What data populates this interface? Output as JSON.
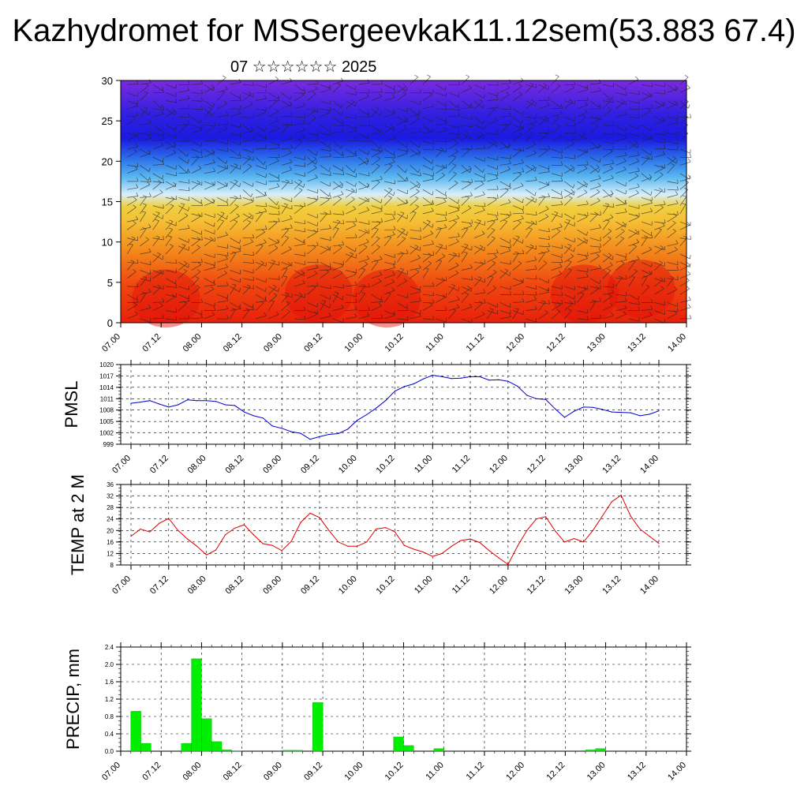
{
  "header": {
    "title": "Kazhydromet for MSSergeevkaK11.12sem(53.883 67.4)",
    "subtitle": "07 ☆☆☆☆☆☆ 2025"
  },
  "chart_data": [
    {
      "type": "heatmap",
      "ylabel": "",
      "ylim": [
        0,
        30
      ],
      "yticks": [
        "0",
        "5",
        "10",
        "15",
        "20",
        "25",
        "30"
      ],
      "xticks": [
        "07.00",
        "07.12",
        "08.00",
        "08.12",
        "09.00",
        "09.12",
        "10.00",
        "10.12",
        "11.00",
        "11.12",
        "12.00",
        "12.12",
        "13.00",
        "13.12",
        "14.00"
      ],
      "colors": {
        "low_levels": "#e8200a",
        "mid_levels": "#f0d040",
        "upper_levels": "#1a1ae0",
        "top": "#7a2ae0"
      },
      "overlay": "wind barbs"
    },
    {
      "type": "line",
      "ylabel": "PMSL",
      "ylim": [
        999,
        1020
      ],
      "yticks": [
        "999",
        "1002",
        "1005",
        "1008",
        "1011",
        "1014",
        "1017",
        "1020"
      ],
      "xticks": [
        "07.00",
        "07.12",
        "08.00",
        "08.12",
        "09.00",
        "09.12",
        "10.00",
        "10.12",
        "11.00",
        "11.12",
        "12.00",
        "12.12",
        "13.00",
        "13.12",
        "14.00"
      ],
      "color": "#0000cc",
      "x": [
        0,
        3,
        6,
        9,
        12,
        15,
        18,
        21,
        24,
        27,
        30,
        33,
        36,
        39,
        42,
        45,
        48,
        51,
        54,
        57,
        60,
        63,
        66,
        69,
        72,
        75,
        78,
        81,
        84,
        87,
        90,
        93,
        96,
        99,
        102,
        105,
        108,
        111,
        114,
        117,
        120,
        123,
        126,
        129,
        132,
        135,
        138,
        141,
        144,
        147,
        150,
        153,
        156,
        159,
        162,
        165,
        168
      ],
      "values": [
        1009.8,
        1010.1,
        1010.5,
        1009.6,
        1008.8,
        1009.4,
        1010.7,
        1010.5,
        1010.5,
        1010.3,
        1009.4,
        1009.2,
        1007.5,
        1006.5,
        1005.9,
        1003.8,
        1003.2,
        1002.3,
        1001.9,
        1000.3,
        1001.0,
        1001.6,
        1001.8,
        1003.0,
        1005.3,
        1006.8,
        1008.5,
        1010.5,
        1013.0,
        1014.2,
        1014.9,
        1016.2,
        1017.2,
        1016.8,
        1016.3,
        1016.4,
        1016.8,
        1016.8,
        1015.9,
        1016.0,
        1015.6,
        1014.3,
        1011.9,
        1011.0,
        1010.8,
        1008.3,
        1006.1,
        1007.7,
        1008.8,
        1008.7,
        1008.2,
        1007.5,
        1007.4,
        1007.3,
        1006.5,
        1006.9,
        1007.8
      ]
    },
    {
      "type": "line",
      "ylabel": "TEMP at 2 M",
      "ylim": [
        8,
        36
      ],
      "yticks": [
        "8",
        "12",
        "16",
        "20",
        "24",
        "28",
        "32",
        "36"
      ],
      "xticks": [
        "07.00",
        "07.12",
        "08.00",
        "08.12",
        "09.00",
        "09.12",
        "10.00",
        "10.12",
        "11.00",
        "11.12",
        "12.00",
        "12.12",
        "13.00",
        "13.12",
        "14.00"
      ],
      "color": "#dd0000",
      "x": [
        0,
        3,
        6,
        9,
        12,
        15,
        18,
        21,
        24,
        27,
        30,
        33,
        36,
        39,
        42,
        45,
        48,
        51,
        54,
        57,
        60,
        63,
        66,
        69,
        72,
        75,
        78,
        81,
        84,
        87,
        90,
        93,
        96,
        99,
        102,
        105,
        108,
        111,
        114,
        117,
        120,
        123,
        126,
        129,
        132,
        135,
        138,
        141,
        144,
        147,
        150,
        153,
        156,
        159,
        162,
        165,
        168
      ],
      "values": [
        18.0,
        20.5,
        19.5,
        22.5,
        24.2,
        20.0,
        17.0,
        14.5,
        11.5,
        13.2,
        18.5,
        20.8,
        22.0,
        18.5,
        15.4,
        14.8,
        13.0,
        16.2,
        22.8,
        26.0,
        24.5,
        20.0,
        16.0,
        14.5,
        14.5,
        16.0,
        20.5,
        21.0,
        19.5,
        14.8,
        13.5,
        12.5,
        11.0,
        12.0,
        14.5,
        16.5,
        17.0,
        15.8,
        13.0,
        10.5,
        8.2,
        14.5,
        20.0,
        24.0,
        24.8,
        19.8,
        16.0,
        17.2,
        16.0,
        20.0,
        25.0,
        30.0,
        32.3,
        25.0,
        20.5,
        18.0,
        15.5
      ]
    },
    {
      "type": "bar",
      "ylabel": "PRECIP, mm",
      "ylim": [
        0,
        2.4
      ],
      "yticks": [
        "0.0",
        "0.4",
        "0.8",
        "1.2",
        "1.6",
        "2.0",
        "2.4"
      ],
      "xticks": [
        "07.00",
        "07.12",
        "08.00",
        "08.12",
        "09.00",
        "09.12",
        "10.00",
        "10.12",
        "11.00",
        "11.12",
        "12.00",
        "12.12",
        "13.00",
        "13.12",
        "14.00"
      ],
      "color": "#00ee00",
      "bar_hours": 3,
      "x": [
        3,
        6,
        9,
        12,
        15,
        18,
        21,
        24,
        27,
        30,
        33,
        36,
        39,
        42,
        45,
        48,
        51,
        54,
        57,
        60,
        63,
        66,
        69,
        72,
        75,
        78,
        81,
        84,
        87,
        90,
        93,
        96,
        99,
        102,
        105,
        108,
        111,
        114,
        117,
        120,
        123,
        126,
        129,
        132,
        135,
        138,
        141,
        144,
        147,
        150,
        153,
        156,
        159,
        162,
        165
      ],
      "values": [
        0.0,
        0.92,
        0.18,
        0.0,
        0.0,
        0.0,
        0.18,
        2.13,
        0.75,
        0.22,
        0.03,
        0.01,
        0.0,
        0.0,
        0.0,
        0.0,
        0.02,
        0.02,
        0.0,
        1.12,
        0.0,
        0.0,
        0.0,
        0.0,
        0.0,
        0.0,
        0.0,
        0.33,
        0.13,
        0.0,
        0.0,
        0.06,
        0.0,
        0.0,
        0.0,
        0.0,
        0.0,
        0.0,
        0.0,
        0.0,
        0.0,
        0.0,
        0.0,
        0.0,
        0.0,
        0.0,
        0.03,
        0.06,
        0.0,
        0.0,
        0.0,
        0.0,
        0.0,
        0.0,
        0.0
      ]
    }
  ]
}
